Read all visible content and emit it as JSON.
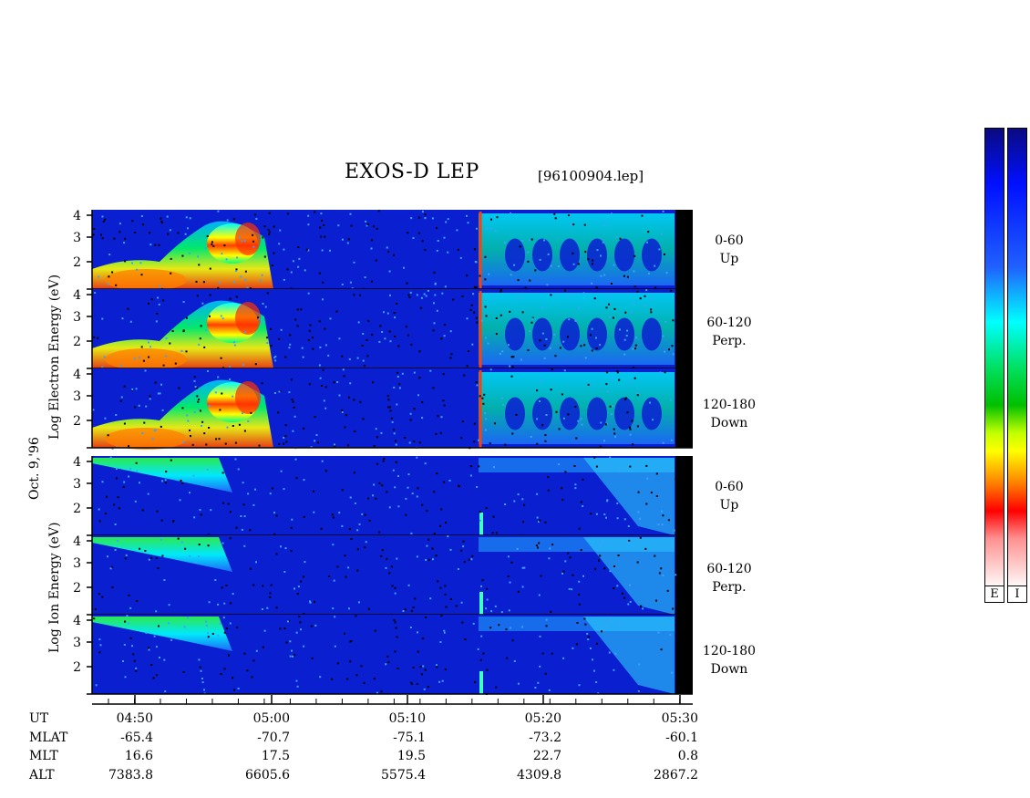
{
  "header": {
    "title": "EXOS-D LEP",
    "file": "[96100904.lep]"
  },
  "panels": [
    {
      "group": "electron",
      "angle": "0-60",
      "dir": "Up"
    },
    {
      "group": "electron",
      "angle": "60-120",
      "dir": "Perp."
    },
    {
      "group": "electron",
      "angle": "120-180",
      "dir": "Down"
    },
    {
      "group": "ion",
      "angle": "0-60",
      "dir": "Up"
    },
    {
      "group": "ion",
      "angle": "60-120",
      "dir": "Perp."
    },
    {
      "group": "ion",
      "angle": "120-180",
      "dir": "Down"
    }
  ],
  "axis_labels": {
    "electron": "Log  Electron  Energy (eV)",
    "ion": "Log  Ion  Energy (eV)",
    "date": "Oct. 9,'96"
  },
  "y_ticks": [
    "4",
    "3",
    "2"
  ],
  "y_ticks_bottom": [
    "4",
    "3",
    "2"
  ],
  "colorbars": {
    "left_label": "E",
    "right_label": "I"
  },
  "colors": {
    "background_spectrogram": "#0a1fd0",
    "gap": "#000000"
  },
  "time_axis": {
    "row_labels": [
      "UT",
      "MLAT",
      "MLT",
      "ALT"
    ],
    "columns": [
      {
        "UT": "04:50",
        "MLAT": "-65.4",
        "MLT": "16.6",
        "ALT": "7383.8"
      },
      {
        "UT": "05:00",
        "MLAT": "-70.7",
        "MLT": "17.5",
        "ALT": "6605.6"
      },
      {
        "UT": "05:10",
        "MLAT": "-75.1",
        "MLT": "19.5",
        "ALT": "5575.4"
      },
      {
        "UT": "05:20",
        "MLAT": "-73.2",
        "MLT": "22.7",
        "ALT": "4309.8"
      },
      {
        "UT": "05:30",
        "MLAT": "-60.1",
        "MLT": "0.8",
        "ALT": "2867.2"
      }
    ]
  },
  "chart_data": {
    "type": "heatmap",
    "title": "EXOS-D LEP",
    "x_range_minutes_ut": [
      "04:45",
      "05:30"
    ],
    "y_range_log_eV": [
      1,
      4
    ],
    "grid": false,
    "colorbar": true
  }
}
